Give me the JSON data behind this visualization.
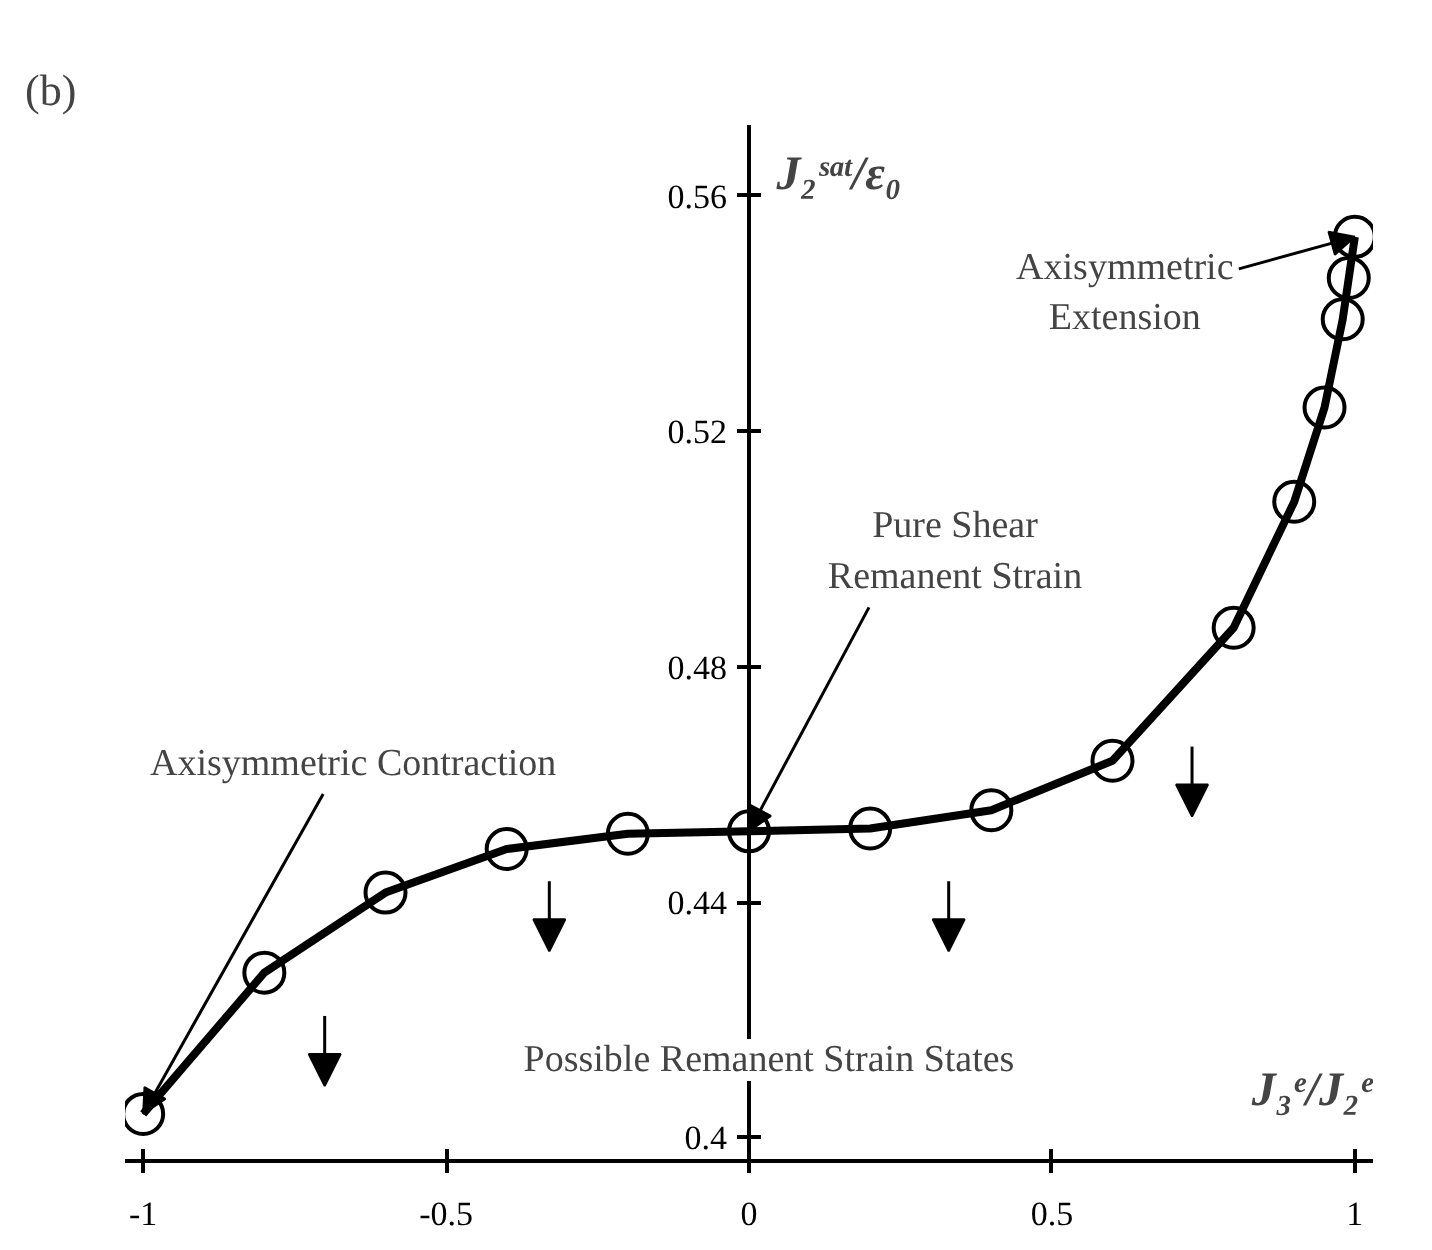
{
  "chart_data": {
    "type": "line",
    "title": "(b)",
    "xlabel": "J₃ᵉ/J₂ᵉ",
    "ylabel": "J₂ˢᵃᵗ/ε₀",
    "x": [
      -1,
      -0.8,
      -0.6,
      -0.4,
      -0.2,
      0,
      0.2,
      0.4,
      0.6,
      0.8,
      0.9,
      0.95,
      0.98,
      0.99,
      1.0
    ],
    "series": [
      {
        "color": "#000000",
        "values": [
          0.404,
          0.428,
          0.4416,
          0.449,
          0.4516,
          0.452,
          0.4525,
          0.4556,
          0.464,
          0.4866,
          0.508,
          0.524,
          0.539,
          0.546,
          0.553
        ]
      }
    ],
    "marker": "circle",
    "line_style": "solid",
    "xlim": [
      -1.03,
      1.03
    ],
    "xticks": [
      -1,
      -0.5,
      0,
      0.5,
      1
    ],
    "ylim": [
      0.396,
      0.572
    ],
    "yticks": [
      0.4,
      0.44,
      0.48,
      0.52,
      0.56
    ],
    "grid": false,
    "annotations": [
      {
        "text": "Axisymmetric Contraction",
        "x": -1,
        "y": 0.404
      },
      {
        "text": "Pure Shear\nRemanent Strain",
        "x": 0,
        "y": 0.452
      },
      {
        "text": "Axisymmetric\nExtension",
        "x": 1.0,
        "y": 0.553
      },
      "Possible Remanent Strain States"
    ]
  }
}
